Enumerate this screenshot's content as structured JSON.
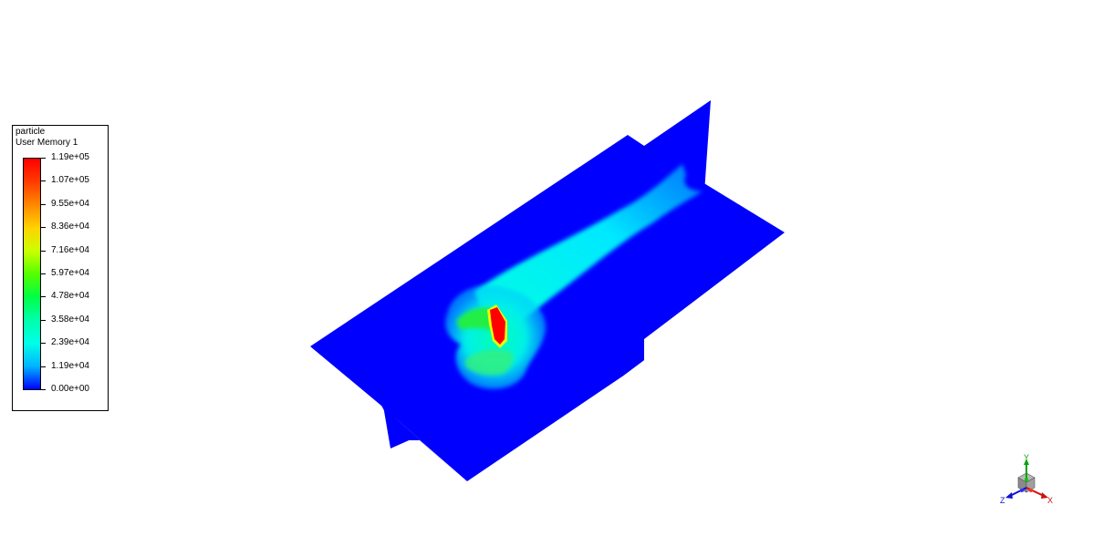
{
  "legend": {
    "title_line1": "particle",
    "title_line2": "User Memory 1",
    "ticks": [
      "1.19e+05",
      "1.07e+05",
      "9.55e+04",
      "8.36e+04",
      "7.16e+04",
      "5.97e+04",
      "4.78e+04",
      "3.58e+04",
      "2.39e+04",
      "1.19e+04",
      "0.00e+00"
    ],
    "colormap": [
      "#ff0000",
      "#ff3b00",
      "#ff8800",
      "#ffd200",
      "#ccff00",
      "#55ff00",
      "#00ff44",
      "#00ffaa",
      "#00ffe8",
      "#00b4ff",
      "#0000ff"
    ]
  },
  "axes_triad": {
    "x_label": "X",
    "y_label": "Y",
    "z_label": "Z",
    "x_color": "#d01010",
    "y_color": "#10a010",
    "z_color": "#1010d0"
  },
  "scene": {
    "surface_color": "#0000ff",
    "plume_color": "#00ffe8",
    "hotspot_color": "#ff0000"
  }
}
